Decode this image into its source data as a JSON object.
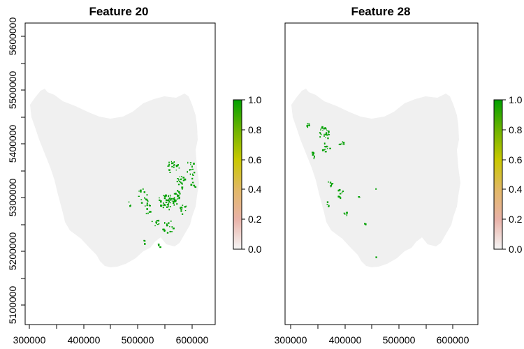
{
  "maps": [
    {
      "title": "Feature 20",
      "x_ticks": [
        "300000",
        "400000",
        "500000",
        "600000"
      ],
      "y_ticks": [
        "5100000",
        "5200000",
        "5300000",
        "5400000",
        "5500000",
        "5600000"
      ],
      "legend_ticks": [
        "0.0",
        "0.2",
        "0.4",
        "0.6",
        "0.8",
        "1.0"
      ],
      "value_range": [
        0,
        1
      ]
    },
    {
      "title": "Feature 28",
      "x_ticks": [
        "300000",
        "400000",
        "500000",
        "600000"
      ],
      "legend_ticks": [
        "0.0",
        "0.2",
        "0.4",
        "0.6",
        "0.8",
        "1.0"
      ],
      "value_range": [
        0,
        1
      ]
    }
  ],
  "colors": {
    "background_land": "#f0f0f0",
    "presence": "#00a000",
    "legend_gradient": [
      "#f5f5f5",
      "#e7a8a0",
      "#e2b866",
      "#c7c800",
      "#6db300",
      "#00a000"
    ]
  }
}
